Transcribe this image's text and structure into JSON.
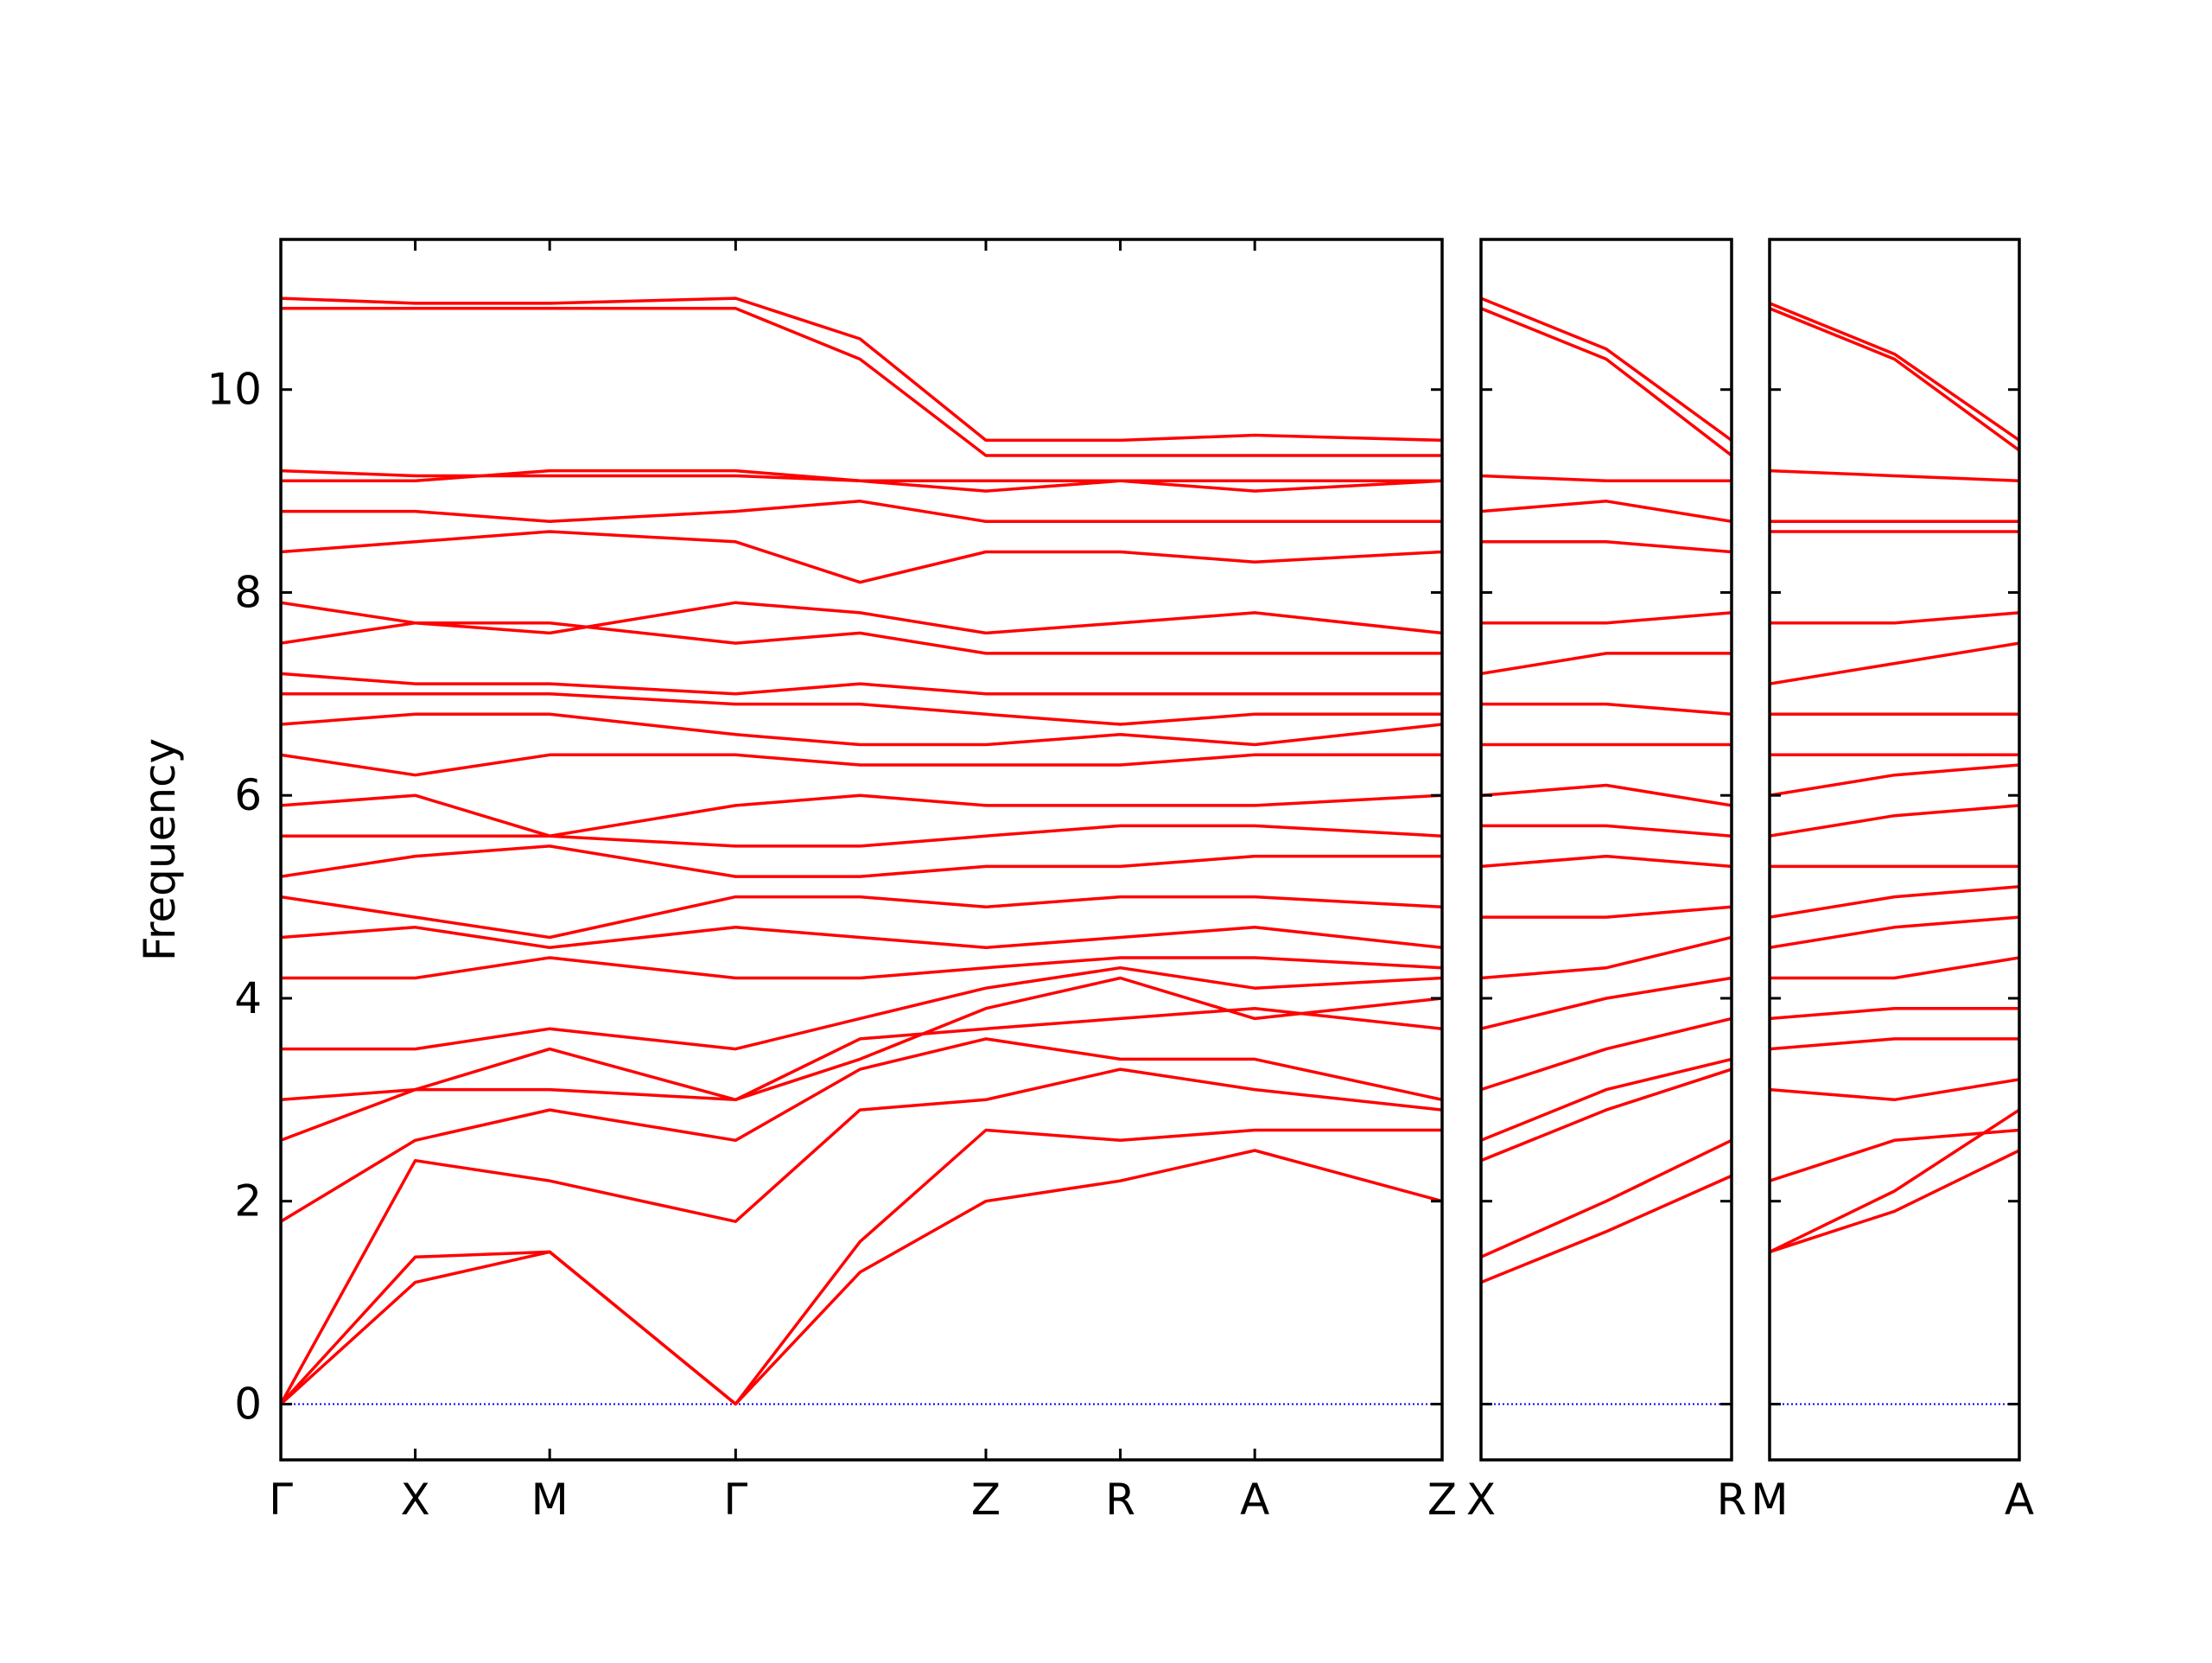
{
  "chart_data": [
    {
      "type": "line",
      "ylabel": "Frequency",
      "color": "#ff0000",
      "baseline": 0,
      "baseline_color": "#0000ff",
      "show_ytick_labels": true,
      "xlim": [
        0,
        8.12
      ],
      "ylim": [
        -0.55,
        11.48
      ],
      "yticks": [
        0,
        2,
        4,
        6,
        8,
        10
      ],
      "xticks": [
        {
          "value": 0,
          "label": "Γ"
        },
        {
          "value": 0.94,
          "label": "X"
        },
        {
          "value": 1.88,
          "label": "M"
        },
        {
          "value": 3.18,
          "label": "Γ"
        },
        {
          "value": 4.93,
          "label": "Z"
        },
        {
          "value": 5.87,
          "label": "R"
        },
        {
          "value": 6.81,
          "label": "A"
        },
        {
          "value": 8.12,
          "label": "Z"
        }
      ],
      "x": [
        0,
        0.94,
        1.88,
        3.18,
        4.05,
        4.93,
        5.87,
        6.81,
        8.12
      ],
      "series": [
        {
          "values": [
            0,
            1.2,
            1.5,
            0,
            1.3,
            2.0,
            2.2,
            2.5,
            2.0
          ]
        },
        {
          "values": [
            0,
            1.45,
            1.5,
            0,
            1.6,
            2.7,
            2.6,
            2.7,
            2.7
          ]
        },
        {
          "values": [
            0,
            2.4,
            2.2,
            1.8,
            2.9,
            3.0,
            3.3,
            3.1,
            2.9
          ]
        },
        {
          "values": [
            1.8,
            2.6,
            2.9,
            2.6,
            3.3,
            3.6,
            3.4,
            3.4,
            3.0
          ]
        },
        {
          "values": [
            2.6,
            3.1,
            3.5,
            3.0,
            3.6,
            3.7,
            3.8,
            3.9,
            3.7
          ]
        },
        {
          "values": [
            3.0,
            3.1,
            3.1,
            3.0,
            3.4,
            3.9,
            4.2,
            3.8,
            4.0
          ]
        },
        {
          "values": [
            3.5,
            3.5,
            3.7,
            3.5,
            3.8,
            4.1,
            4.3,
            4.1,
            4.2
          ]
        },
        {
          "values": [
            4.2,
            4.2,
            4.4,
            4.2,
            4.2,
            4.3,
            4.4,
            4.4,
            4.3
          ]
        },
        {
          "values": [
            4.6,
            4.7,
            4.5,
            4.7,
            4.6,
            4.5,
            4.6,
            4.7,
            4.5
          ]
        },
        {
          "values": [
            5.0,
            4.8,
            4.6,
            5.0,
            5.0,
            4.9,
            5.0,
            5.0,
            4.9
          ]
        },
        {
          "values": [
            5.2,
            5.4,
            5.5,
            5.2,
            5.2,
            5.3,
            5.3,
            5.4,
            5.4
          ]
        },
        {
          "values": [
            5.6,
            5.6,
            5.6,
            5.5,
            5.5,
            5.6,
            5.7,
            5.7,
            5.6
          ]
        },
        {
          "values": [
            5.9,
            6.0,
            5.6,
            5.9,
            6.0,
            5.9,
            5.9,
            5.9,
            6.0
          ]
        },
        {
          "values": [
            6.4,
            6.2,
            6.4,
            6.4,
            6.3,
            6.3,
            6.3,
            6.4,
            6.4
          ]
        },
        {
          "values": [
            6.7,
            6.8,
            6.8,
            6.6,
            6.5,
            6.5,
            6.6,
            6.5,
            6.7
          ]
        },
        {
          "values": [
            7.0,
            7.0,
            7.0,
            6.9,
            6.9,
            6.8,
            6.7,
            6.8,
            6.8
          ]
        },
        {
          "values": [
            7.2,
            7.1,
            7.1,
            7.0,
            7.1,
            7.0,
            7.0,
            7.0,
            7.0
          ]
        },
        {
          "values": [
            7.5,
            7.7,
            7.7,
            7.5,
            7.6,
            7.4,
            7.4,
            7.4,
            7.4
          ]
        },
        {
          "values": [
            7.9,
            7.7,
            7.6,
            7.9,
            7.8,
            7.6,
            7.7,
            7.8,
            7.6
          ]
        },
        {
          "values": [
            8.4,
            8.5,
            8.6,
            8.5,
            8.1,
            8.4,
            8.4,
            8.3,
            8.4
          ]
        },
        {
          "values": [
            8.8,
            8.8,
            8.7,
            8.8,
            8.9,
            8.7,
            8.7,
            8.7,
            8.7
          ]
        },
        {
          "values": [
            9.1,
            9.1,
            9.2,
            9.2,
            9.1,
            9.0,
            9.1,
            9.0,
            9.1
          ]
        },
        {
          "values": [
            9.2,
            9.15,
            9.15,
            9.15,
            9.1,
            9.1,
            9.1,
            9.1,
            9.1
          ]
        },
        {
          "values": [
            10.8,
            10.8,
            10.8,
            10.8,
            10.3,
            9.35,
            9.35,
            9.35,
            9.35
          ]
        },
        {
          "values": [
            10.9,
            10.85,
            10.85,
            10.9,
            10.5,
            9.5,
            9.5,
            9.55,
            9.5
          ]
        }
      ]
    },
    {
      "type": "line",
      "color": "#ff0000",
      "baseline": 0,
      "baseline_color": "#0000ff",
      "show_ytick_labels": false,
      "xlim": [
        0,
        1.75
      ],
      "ylim": [
        -0.55,
        11.48
      ],
      "yticks": [
        0,
        2,
        4,
        6,
        8,
        10
      ],
      "xticks": [
        {
          "value": 0,
          "label": "X"
        },
        {
          "value": 1.75,
          "label": "R"
        }
      ],
      "x": [
        0,
        0.875,
        1.75
      ],
      "series": [
        {
          "values": [
            1.2,
            1.7,
            2.25
          ]
        },
        {
          "values": [
            1.45,
            2.0,
            2.6
          ]
        },
        {
          "values": [
            2.4,
            2.9,
            3.3
          ]
        },
        {
          "values": [
            2.6,
            3.1,
            3.4
          ]
        },
        {
          "values": [
            3.1,
            3.5,
            3.8
          ]
        },
        {
          "values": [
            3.7,
            4.0,
            4.2
          ]
        },
        {
          "values": [
            4.2,
            4.3,
            4.6
          ]
        },
        {
          "values": [
            4.8,
            4.8,
            4.9
          ]
        },
        {
          "values": [
            5.3,
            5.4,
            5.3
          ]
        },
        {
          "values": [
            5.7,
            5.7,
            5.6
          ]
        },
        {
          "values": [
            6.0,
            6.1,
            5.9
          ]
        },
        {
          "values": [
            6.5,
            6.5,
            6.5
          ]
        },
        {
          "values": [
            6.9,
            6.9,
            6.8
          ]
        },
        {
          "values": [
            7.2,
            7.4,
            7.4
          ]
        },
        {
          "values": [
            7.7,
            7.7,
            7.8
          ]
        },
        {
          "values": [
            8.5,
            8.5,
            8.4
          ]
        },
        {
          "values": [
            8.8,
            8.9,
            8.7
          ]
        },
        {
          "values": [
            9.15,
            9.1,
            9.1
          ]
        },
        {
          "values": [
            10.8,
            10.3,
            9.35
          ]
        },
        {
          "values": [
            10.9,
            10.4,
            9.5
          ]
        }
      ]
    },
    {
      "type": "line",
      "color": "#ff0000",
      "baseline": 0,
      "baseline_color": "#0000ff",
      "show_ytick_labels": false,
      "xlim": [
        0,
        1.74
      ],
      "ylim": [
        -0.55,
        11.48
      ],
      "yticks": [
        0,
        2,
        4,
        6,
        8,
        10
      ],
      "xticks": [
        {
          "value": 0,
          "label": "M"
        },
        {
          "value": 1.74,
          "label": "A"
        }
      ],
      "x": [
        0,
        0.87,
        1.74
      ],
      "series": [
        {
          "values": [
            1.5,
            1.9,
            2.5
          ]
        },
        {
          "values": [
            1.5,
            2.1,
            2.9
          ]
        },
        {
          "values": [
            2.2,
            2.6,
            2.7
          ]
        },
        {
          "values": [
            3.1,
            3.0,
            3.2
          ]
        },
        {
          "values": [
            3.5,
            3.6,
            3.6
          ]
        },
        {
          "values": [
            3.8,
            3.9,
            3.9
          ]
        },
        {
          "values": [
            4.2,
            4.2,
            4.4
          ]
        },
        {
          "values": [
            4.5,
            4.7,
            4.8
          ]
        },
        {
          "values": [
            4.8,
            5.0,
            5.1
          ]
        },
        {
          "values": [
            5.3,
            5.3,
            5.3
          ]
        },
        {
          "values": [
            5.6,
            5.8,
            5.9
          ]
        },
        {
          "values": [
            6.0,
            6.2,
            6.3
          ]
        },
        {
          "values": [
            6.4,
            6.4,
            6.4
          ]
        },
        {
          "values": [
            6.8,
            6.8,
            6.8
          ]
        },
        {
          "values": [
            7.1,
            7.3,
            7.5
          ]
        },
        {
          "values": [
            7.7,
            7.7,
            7.8
          ]
        },
        {
          "values": [
            8.6,
            8.6,
            8.6
          ]
        },
        {
          "values": [
            8.7,
            8.7,
            8.7
          ]
        },
        {
          "values": [
            9.2,
            9.15,
            9.1
          ]
        },
        {
          "values": [
            10.8,
            10.3,
            9.4
          ]
        },
        {
          "values": [
            10.85,
            10.35,
            9.5
          ]
        }
      ]
    }
  ]
}
